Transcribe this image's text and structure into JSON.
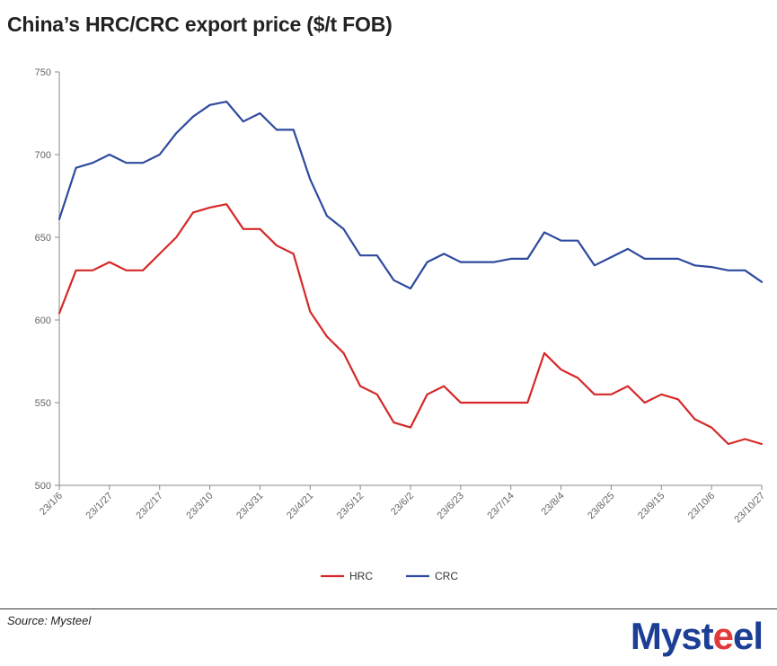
{
  "title": "China’s HRC/CRC export price ($/t FOB)",
  "source": "Source: Mysteel",
  "logo": {
    "text": "Mysteel"
  },
  "colors": {
    "hrc": "#d62828",
    "crc": "#2e4a9e",
    "axis": "#888888",
    "brand": "#1c3f95"
  },
  "chart_data": {
    "type": "line",
    "title": "China’s HRC/CRC export price ($/t FOB)",
    "xlabel": "",
    "ylabel": "",
    "ylim": [
      500,
      750
    ],
    "yticks": [
      500,
      550,
      600,
      650,
      700,
      750
    ],
    "grid": false,
    "legend_position": "bottom",
    "x": [
      "23/1/6",
      "23/1/13",
      "23/1/20",
      "23/1/27",
      "23/2/3",
      "23/2/10",
      "23/2/17",
      "23/2/24",
      "23/3/3",
      "23/3/10",
      "23/3/17",
      "23/3/24",
      "23/3/31",
      "23/4/7",
      "23/4/14",
      "23/4/21",
      "23/4/28",
      "23/5/5",
      "23/5/12",
      "23/5/19",
      "23/5/26",
      "23/6/2",
      "23/6/9",
      "23/6/16",
      "23/6/23",
      "23/6/30",
      "23/7/7",
      "23/7/14",
      "23/7/21",
      "23/7/28",
      "23/8/4",
      "23/8/11",
      "23/8/18",
      "23/8/25",
      "23/9/1",
      "23/9/8",
      "23/9/15",
      "23/9/22",
      "23/9/29",
      "23/10/6",
      "23/10/13",
      "23/10/20",
      "23/10/27"
    ],
    "xtick_labels": [
      "23/1/6",
      "23/1/27",
      "23/2/17",
      "23/3/10",
      "23/3/31",
      "23/4/21",
      "23/5/12",
      "23/6/2",
      "23/6/23",
      "23/7/14",
      "23/8/4",
      "23/8/25",
      "23/9/15",
      "23/10/6",
      "23/10/27"
    ],
    "series": [
      {
        "name": "HRC",
        "color": "#d62828",
        "values": [
          604,
          630,
          630,
          635,
          630,
          630,
          640,
          650,
          665,
          668,
          670,
          655,
          655,
          645,
          640,
          605,
          590,
          580,
          560,
          555,
          538,
          535,
          555,
          560,
          550,
          550,
          550,
          550,
          550,
          580,
          570,
          565,
          555,
          555,
          560,
          550,
          555,
          552,
          540,
          535,
          525,
          528,
          525
        ]
      },
      {
        "name": "CRC",
        "color": "#2e4a9e",
        "values": [
          661,
          692,
          695,
          700,
          695,
          695,
          700,
          713,
          723,
          730,
          732,
          720,
          725,
          715,
          715,
          685,
          663,
          655,
          639,
          639,
          624,
          619,
          635,
          640,
          635,
          635,
          635,
          637,
          637,
          653,
          648,
          648,
          633,
          638,
          643,
          637,
          637,
          637,
          633,
          632,
          630,
          630,
          623
        ]
      }
    ]
  }
}
